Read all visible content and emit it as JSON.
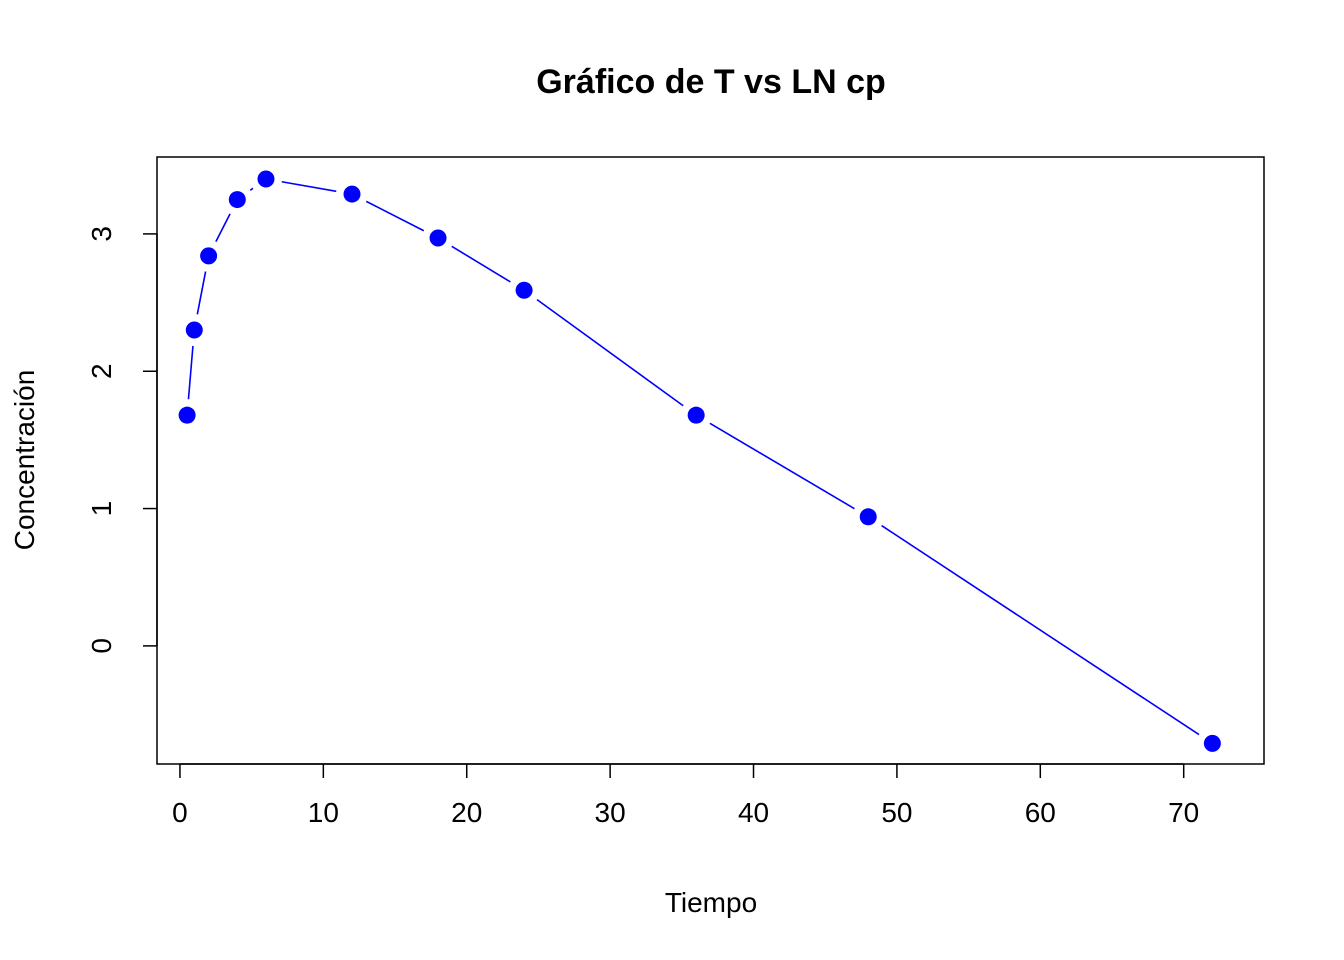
{
  "chart_data": {
    "type": "line",
    "title": "Gráfico de T vs LN cp",
    "xlabel": "Tiempo",
    "ylabel": "Concentración",
    "xlim": [
      -1.6,
      75.6
    ],
    "ylim": [
      -0.86,
      3.56
    ],
    "x_ticks": [
      0,
      10,
      20,
      30,
      40,
      50,
      60,
      70
    ],
    "y_ticks": [
      0,
      1,
      2,
      3
    ],
    "grid": false,
    "legend": "none",
    "series": [
      {
        "x": [
          0.5,
          1,
          2,
          4,
          6,
          12,
          18,
          24,
          36,
          48,
          72
        ],
        "y": [
          1.68,
          2.3,
          2.84,
          3.25,
          3.4,
          3.29,
          2.97,
          2.59,
          1.68,
          0.94,
          -0.71
        ]
      }
    ],
    "line_color": "#0000ff",
    "marker_color": "#0000ff"
  }
}
